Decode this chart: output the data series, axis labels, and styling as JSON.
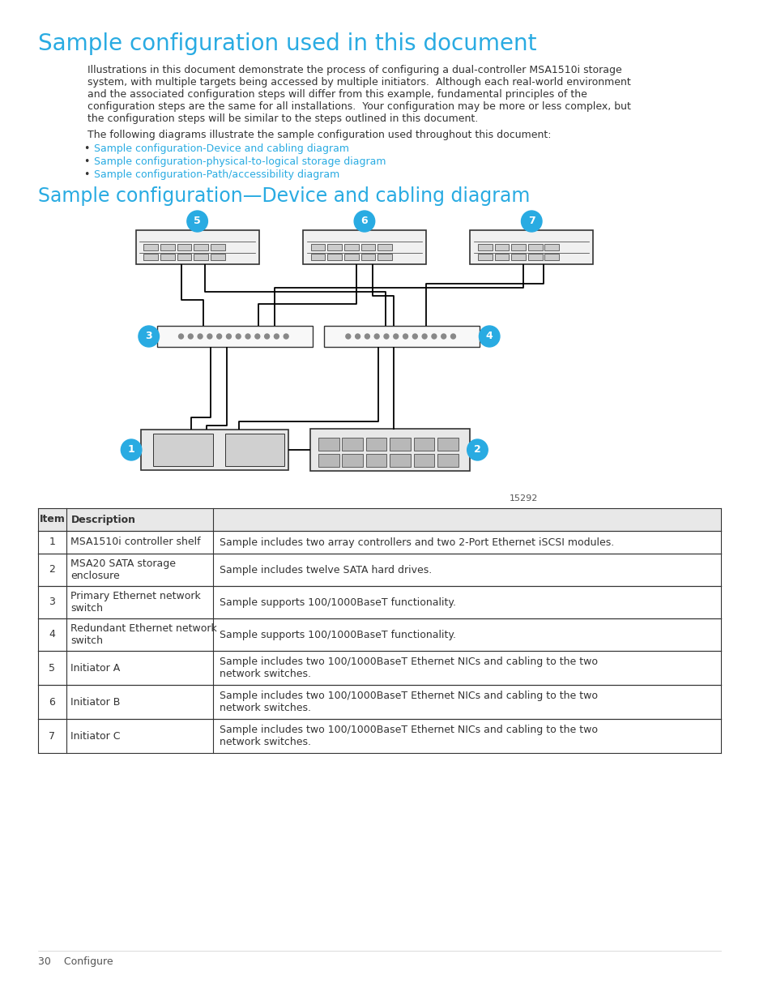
{
  "bg_color": "#ffffff",
  "title1": "Sample configuration used in this document",
  "title1_color": "#29ABE2",
  "title1_fontsize": 20,
  "body_text": "Illustrations in this document demonstrate the process of configuring a dual-controller MSA1510i storage\nsystem, with multiple targets being accessed by multiple initiators.  Although each real-world environment\nand the associated configuration steps will differ from this example, fundamental principles of the\nconfiguration steps are the same for all installations.  Your configuration may be more or less complex, but\nthe configuration steps will be similar to the steps outlined in this document.",
  "body_fontsize": 9,
  "body_color": "#333333",
  "bullet_intro": "The following diagrams illustrate the sample configuration used throughout this document:",
  "bullets": [
    "Sample configuration-Device and cabling diagram",
    "Sample configuration-physical-to-logical storage diagram",
    "Sample configuration-Path/accessibility diagram"
  ],
  "bullet_color": "#29ABE2",
  "title2": "Sample configuration—Device and cabling diagram",
  "title2_color": "#29ABE2",
  "title2_fontsize": 17,
  "diagram_note": "15292",
  "table_headers": [
    "Item",
    "Description"
  ],
  "table_rows": [
    [
      "1",
      "MSA1510i controller shelf",
      "Sample includes two array controllers and two 2-Port Ethernet iSCSI modules."
    ],
    [
      "2",
      "MSA20 SATA storage\nenclosure",
      "Sample includes twelve SATA hard drives."
    ],
    [
      "3",
      "Primary Ethernet network\nswitch",
      "Sample supports 100/1000BaseT functionality."
    ],
    [
      "4",
      "Redundant Ethernet network\nswitch",
      "Sample supports 100/1000BaseT functionality."
    ],
    [
      "5",
      "Initiator A",
      "Sample includes two 100/1000BaseT Ethernet NICs and cabling to the two\nnetwork switches."
    ],
    [
      "6",
      "Initiator B",
      "Sample includes two 100/1000BaseT Ethernet NICs and cabling to the two\nnetwork switches."
    ],
    [
      "7",
      "Initiator C",
      "Sample includes two 100/1000BaseT Ethernet NICs and cabling to the two\nnetwork switches."
    ]
  ],
  "footer_text": "30    Configure",
  "circle_color": "#29ABE2",
  "circle_text_color": "#ffffff",
  "device_outline_color": "#333333",
  "cable_color": "#000000"
}
